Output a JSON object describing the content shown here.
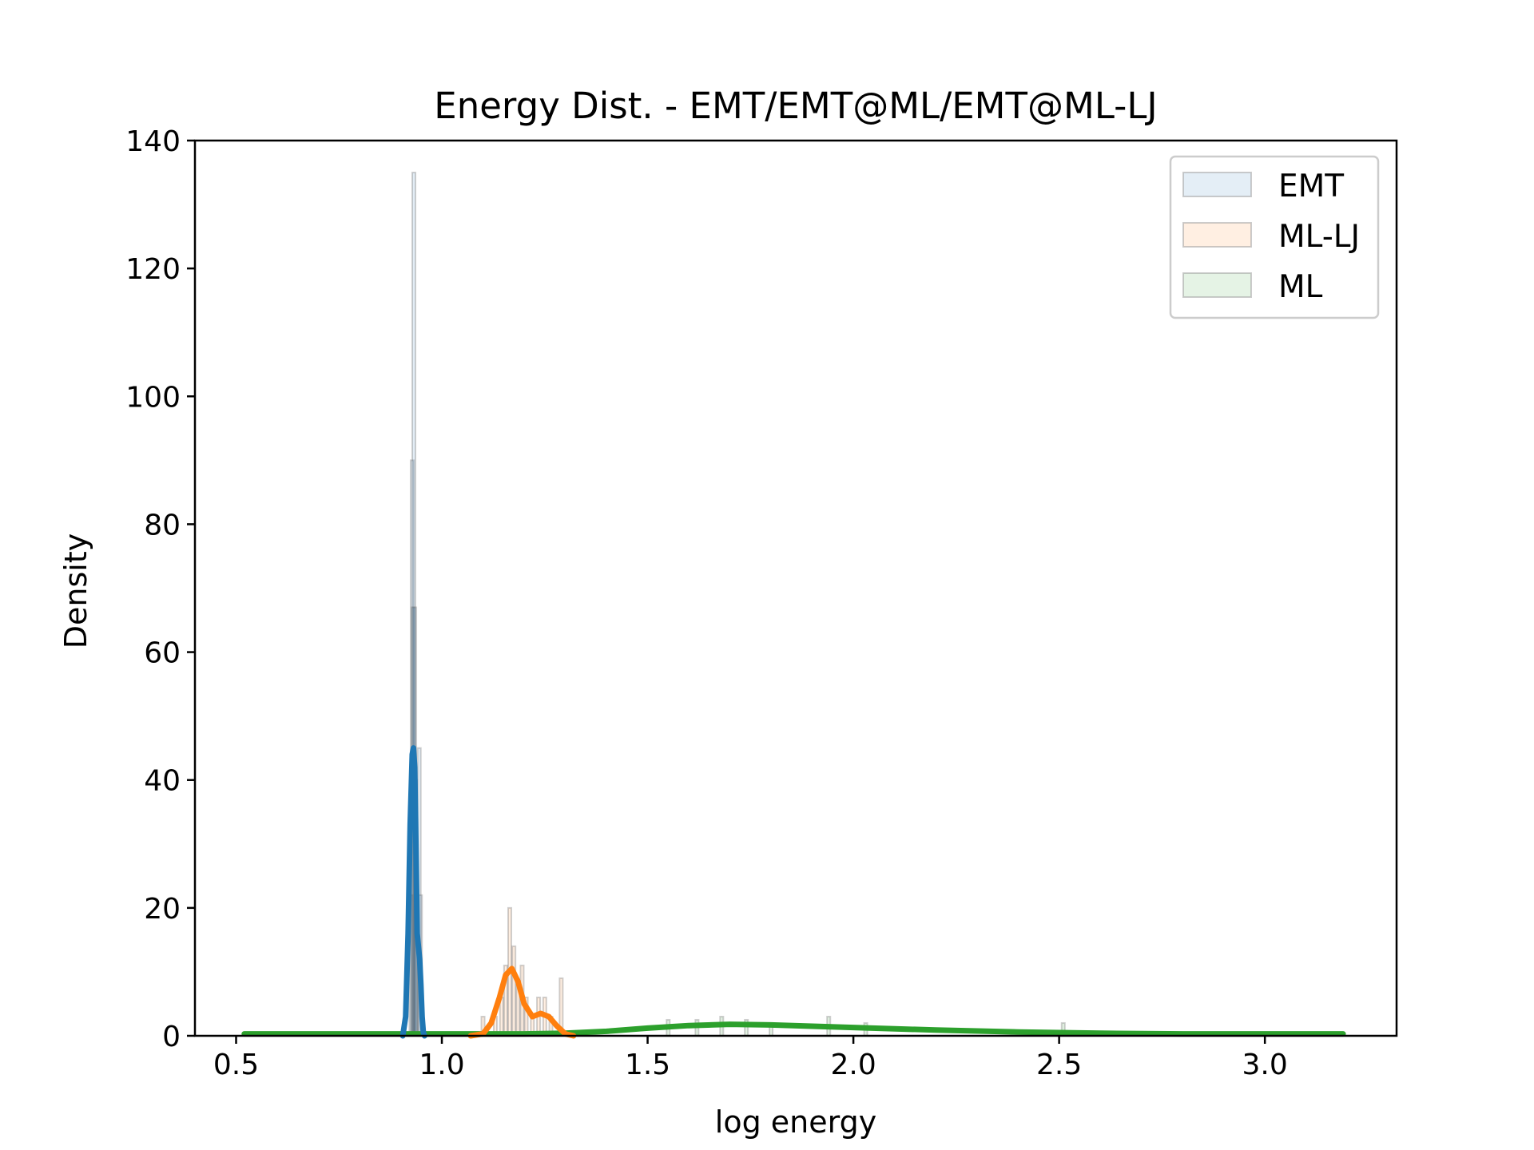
{
  "chart_data": {
    "type": "histogram+kde",
    "title": "Energy Dist. - EMT/EMT@ML/EMT@ML-LJ",
    "xlabel": "log energy",
    "ylabel": "Density",
    "xlim": [
      0.4,
      3.32
    ],
    "ylim": [
      0,
      140
    ],
    "xticks": [
      0.5,
      1.0,
      1.5,
      2.0,
      2.5,
      3.0
    ],
    "xtick_labels": [
      "0.5",
      "1.0",
      "1.5",
      "2.0",
      "2.5",
      "3.0"
    ],
    "yticks": [
      0,
      20,
      40,
      60,
      80,
      100,
      120,
      140
    ],
    "ytick_labels": [
      "0",
      "20",
      "40",
      "60",
      "80",
      "100",
      "120",
      "140"
    ],
    "grid": false,
    "legend_position": "top-right",
    "legend": [
      {
        "label": "EMT",
        "color": "#1f77b4"
      },
      {
        "label": "ML-LJ",
        "color": "#ff7f0e"
      },
      {
        "label": "ML",
        "color": "#2ca02c"
      }
    ],
    "histograms": [
      {
        "name": "EMT",
        "color": "#1f77b4",
        "bars": [
          {
            "x": 0.925,
            "density": 22
          },
          {
            "x": 0.928,
            "density": 90
          },
          {
            "x": 0.93,
            "density": 67
          },
          {
            "x": 0.932,
            "density": 135
          },
          {
            "x": 0.934,
            "density": 67
          },
          {
            "x": 0.936,
            "density": 40
          },
          {
            "x": 0.938,
            "density": 22
          },
          {
            "x": 0.945,
            "density": 45
          },
          {
            "x": 0.948,
            "density": 22
          }
        ]
      },
      {
        "name": "ML-LJ",
        "color": "#ff7f0e",
        "bars": [
          {
            "x": 1.1,
            "density": 3
          },
          {
            "x": 1.13,
            "density": 3
          },
          {
            "x": 1.145,
            "density": 6
          },
          {
            "x": 1.155,
            "density": 11
          },
          {
            "x": 1.165,
            "density": 20
          },
          {
            "x": 1.175,
            "density": 14
          },
          {
            "x": 1.185,
            "density": 8
          },
          {
            "x": 1.195,
            "density": 11
          },
          {
            "x": 1.205,
            "density": 6
          },
          {
            "x": 1.22,
            "density": 3
          },
          {
            "x": 1.235,
            "density": 6
          },
          {
            "x": 1.25,
            "density": 6
          },
          {
            "x": 1.265,
            "density": 3
          },
          {
            "x": 1.29,
            "density": 9
          }
        ]
      },
      {
        "name": "ML",
        "color": "#2ca02c",
        "bars": [
          {
            "x": 1.55,
            "density": 2.5
          },
          {
            "x": 1.62,
            "density": 2.5
          },
          {
            "x": 1.68,
            "density": 3
          },
          {
            "x": 1.74,
            "density": 2.5
          },
          {
            "x": 1.8,
            "density": 2
          },
          {
            "x": 1.94,
            "density": 3
          },
          {
            "x": 2.03,
            "density": 2
          },
          {
            "x": 2.51,
            "density": 2
          }
        ]
      }
    ],
    "series": [
      {
        "name": "EMT",
        "color": "#1f77b4",
        "x": [
          0.905,
          0.912,
          0.918,
          0.923,
          0.928,
          0.931,
          0.934,
          0.937,
          0.94,
          0.943,
          0.946,
          0.949,
          0.952,
          0.955,
          0.958
        ],
        "y": [
          0,
          3,
          16,
          33,
          44,
          45,
          42,
          30,
          16,
          14,
          12,
          8,
          3,
          0.5,
          0
        ]
      },
      {
        "name": "ML-LJ",
        "color": "#ff7f0e",
        "x": [
          1.07,
          1.1,
          1.12,
          1.14,
          1.155,
          1.17,
          1.185,
          1.2,
          1.22,
          1.24,
          1.26,
          1.28,
          1.3,
          1.32
        ],
        "y": [
          0,
          0.3,
          2,
          6,
          9.5,
          10.5,
          8.5,
          5,
          3,
          3.5,
          3,
          1.5,
          0.3,
          0
        ]
      },
      {
        "name": "ML",
        "color": "#2ca02c",
        "x": [
          0.52,
          0.8,
          1.0,
          1.2,
          1.3,
          1.4,
          1.5,
          1.6,
          1.7,
          1.8,
          1.9,
          2.0,
          2.2,
          2.4,
          2.6,
          2.8,
          3.0,
          3.19
        ],
        "y": [
          0.3,
          0.3,
          0.3,
          0.3,
          0.4,
          0.7,
          1.2,
          1.6,
          1.8,
          1.7,
          1.5,
          1.3,
          0.9,
          0.6,
          0.4,
          0.3,
          0.3,
          0.3
        ]
      }
    ]
  }
}
